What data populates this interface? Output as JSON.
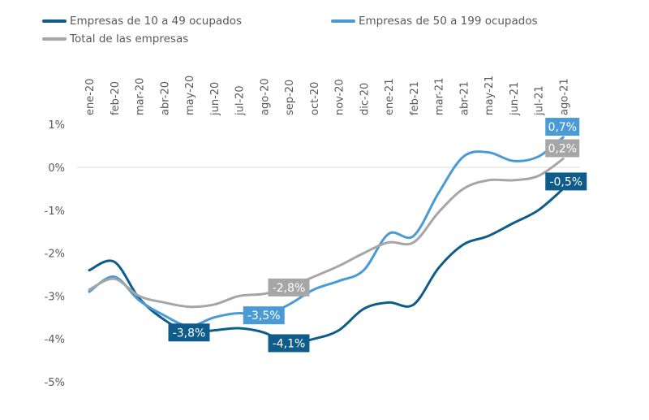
{
  "chart_data": {
    "type": "line",
    "categories": [
      "ene-20",
      "feb-20",
      "mar-20",
      "abr-20",
      "may-20",
      "jun-20",
      "jul-20",
      "ago-20",
      "sep-20",
      "oct-20",
      "nov-20",
      "dic-20",
      "ene-21",
      "feb-21",
      "mar-21",
      "abr-21",
      "may-21",
      "jun-21",
      "jul-21",
      "ago-21"
    ],
    "ylim": [
      -5,
      1
    ],
    "yticks": [
      {
        "v": 1,
        "label": "1%"
      },
      {
        "v": 0,
        "label": "0%"
      },
      {
        "v": -1,
        "label": "-1%"
      },
      {
        "v": -2,
        "label": "-2%"
      },
      {
        "v": -3,
        "label": "-3%"
      },
      {
        "v": -4,
        "label": "-4%"
      },
      {
        "v": -5,
        "label": "-5%"
      }
    ],
    "legend_position": "top",
    "series": [
      {
        "name": "Empresas de 10 a 49 ocupados",
        "color": "#0f5c8a",
        "values": [
          -2.4,
          -2.2,
          -3.05,
          -3.55,
          -3.85,
          -3.8,
          -3.75,
          -3.85,
          -4.1,
          -4.0,
          -3.8,
          -3.3,
          -3.15,
          -3.2,
          -2.35,
          -1.8,
          -1.6,
          -1.3,
          -1.0,
          -0.5
        ],
        "labels": [
          {
            "index": 4,
            "text": "-3,8%"
          },
          {
            "index": 8,
            "text": "-4,1%"
          },
          {
            "index": 19,
            "text": "-0,5%"
          }
        ]
      },
      {
        "name": "Empresas de 50 a 199 ocupados",
        "color": "#4a9ad6",
        "values": [
          -2.9,
          -2.55,
          -3.1,
          -3.45,
          -3.7,
          -3.5,
          -3.4,
          -3.45,
          -3.2,
          -2.85,
          -2.65,
          -2.4,
          -1.55,
          -1.6,
          -0.6,
          0.25,
          0.35,
          0.15,
          0.25,
          0.7
        ],
        "labels": [
          {
            "index": 7,
            "text": "-3,5%"
          },
          {
            "index": 19,
            "text": "0,7%"
          }
        ]
      },
      {
        "name": "Total de las empresas",
        "color": "#a6a6a6",
        "values": [
          -2.85,
          -2.6,
          -3.0,
          -3.15,
          -3.25,
          -3.2,
          -3.0,
          -2.95,
          -2.8,
          -2.55,
          -2.3,
          -2.0,
          -1.75,
          -1.75,
          -1.05,
          -0.5,
          -0.3,
          -0.3,
          -0.2,
          0.2
        ],
        "labels": [
          {
            "index": 8,
            "text": "-2,8%"
          },
          {
            "index": 19,
            "text": "0,2%"
          }
        ]
      }
    ]
  }
}
